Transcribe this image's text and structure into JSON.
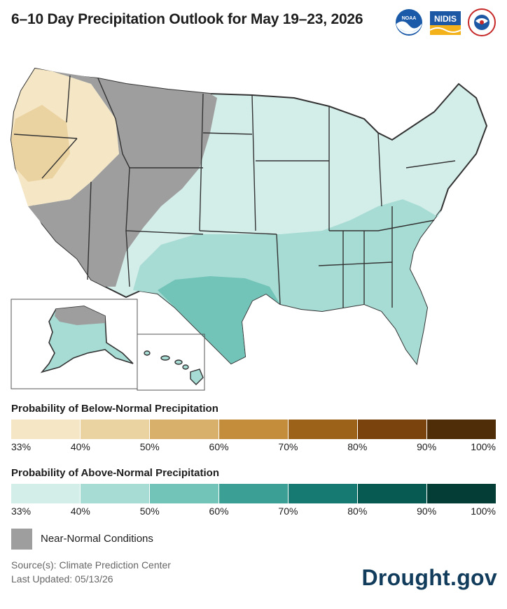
{
  "title": "6–10 Day Precipitation Outlook for May 19–23, 2026",
  "logos": [
    {
      "name": "noaa-logo",
      "text": "NOAA"
    },
    {
      "name": "nidis-logo",
      "text": "NIDIS"
    },
    {
      "name": "nws-logo",
      "text": "NWS"
    }
  ],
  "legend_below": {
    "title": "Probability of Below-Normal Precipitation",
    "colors": [
      "#f5e7c6",
      "#ebd3a1",
      "#d9b06b",
      "#c48d3c",
      "#9c6219",
      "#7a430d",
      "#4f2d08"
    ],
    "ticks": [
      "33%",
      "40%",
      "50%",
      "60%",
      "70%",
      "80%",
      "90%",
      "100%"
    ]
  },
  "legend_above": {
    "title": "Probability of Above-Normal Precipitation",
    "colors": [
      "#d3ede9",
      "#a7dcd4",
      "#72c3b8",
      "#3c9f95",
      "#177a72",
      "#075a52",
      "#043d36"
    ],
    "ticks": [
      "33%",
      "40%",
      "50%",
      "60%",
      "70%",
      "80%",
      "90%",
      "100%"
    ]
  },
  "near_normal": {
    "label": "Near-Normal Conditions",
    "color": "#9e9e9e"
  },
  "source": "Source(s): Climate Prediction Center",
  "updated": "Last Updated: 05/13/26",
  "brand": "Drought.gov"
}
